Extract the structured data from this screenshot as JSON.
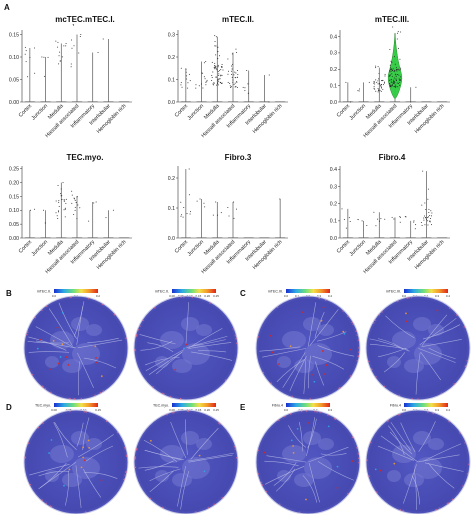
{
  "figure": {
    "panels": {
      "A": "A",
      "B": "B",
      "C": "C",
      "D": "D",
      "E": "E"
    }
  },
  "chart_data": [
    {
      "type": "scatter",
      "title": "mcTEC.mTEC.I.",
      "categories": [
        "Cortex",
        "Junction",
        "Medulla",
        "Hassall associated",
        "Inflammatory",
        "Interlobular",
        "Hemoglobin rich"
      ],
      "ylim": [
        0,
        0.16
      ],
      "yticks": [
        "0.00",
        "0.05",
        "0.10",
        "0.15"
      ],
      "ytick_values": [
        0,
        0.05,
        0.1,
        0.15
      ],
      "max_values": [
        0.12,
        0.1,
        0.13,
        0.15,
        0.11,
        0.14,
        0.0
      ],
      "cluster_centers": [
        0.09,
        0.09,
        0.1,
        0.1,
        0.0,
        0.0,
        0.0
      ],
      "point_counts": [
        8,
        4,
        12,
        10,
        1,
        1,
        0
      ]
    },
    {
      "type": "scatter",
      "title": "mTEC.II.",
      "categories": [
        "Cortex",
        "Junction",
        "Medulla",
        "Hassall associated",
        "Inflammatory",
        "Interlobular",
        "Hemoglobin rich"
      ],
      "ylim": [
        0,
        0.32
      ],
      "yticks": [
        "0.0",
        "0.1",
        "0.2",
        "0.3"
      ],
      "ytick_values": [
        0,
        0.1,
        0.2,
        0.3
      ],
      "max_values": [
        0.15,
        0.18,
        0.29,
        0.22,
        0.14,
        0.12,
        0.0
      ],
      "cluster_centers": [
        0.09,
        0.1,
        0.12,
        0.1,
        0.05,
        0.0,
        0.0
      ],
      "point_counts": [
        12,
        15,
        60,
        35,
        6,
        2,
        0
      ]
    },
    {
      "type": "scatter",
      "title": "mTEC.III.",
      "categories": [
        "Cortex",
        "Junction",
        "Medulla",
        "Hassall associated",
        "Inflammatory",
        "Interlobular",
        "Hemoglobin rich"
      ],
      "ylim": [
        0,
        0.44
      ],
      "yticks": [
        "0.0",
        "0.1",
        "0.2",
        "0.3",
        "0.4"
      ],
      "ytick_values": [
        0,
        0.1,
        0.2,
        0.3,
        0.4
      ],
      "max_values": [
        0.12,
        0.12,
        0.21,
        0.42,
        0.09,
        0.0,
        0.0
      ],
      "cluster_centers": [
        0.0,
        0.05,
        0.1,
        0.15,
        0.0,
        0.0,
        0.0
      ],
      "point_counts": [
        2,
        4,
        40,
        90,
        2,
        0,
        0
      ]
    },
    {
      "type": "scatter",
      "title": "TEC.myo.",
      "categories": [
        "Cortex",
        "Junction",
        "Medulla",
        "Hassall associated",
        "Inflammatory",
        "Interlobular",
        "Hemoglobin rich"
      ],
      "ylim": [
        0,
        0.26
      ],
      "yticks": [
        "0.00",
        "0.05",
        "0.10",
        "0.15",
        "0.20",
        "0.25"
      ],
      "ytick_values": [
        0,
        0.05,
        0.1,
        0.15,
        0.2,
        0.25
      ],
      "max_values": [
        0.1,
        0.1,
        0.2,
        0.15,
        0.13,
        0.1,
        0.0
      ],
      "cluster_centers": [
        0.08,
        0.09,
        0.11,
        0.11,
        0.1,
        0.06,
        0.0
      ],
      "point_counts": [
        2,
        2,
        25,
        15,
        3,
        2,
        0
      ]
    },
    {
      "type": "scatter",
      "title": "Fibro.3",
      "categories": [
        "Cortex",
        "Junction",
        "Medulla",
        "Hassall associated",
        "Inflammatory",
        "Interlobular",
        "Hemoglobin rich"
      ],
      "ylim": [
        0,
        0.24
      ],
      "yticks": [
        "0.0",
        "0.1",
        "0.2"
      ],
      "ytick_values": [
        0,
        0.1,
        0.2
      ],
      "max_values": [
        0.23,
        0.13,
        0.12,
        0.12,
        0.0,
        0.0,
        0.13
      ],
      "cluster_centers": [
        0.1,
        0.09,
        0.1,
        0.1,
        0.0,
        0.0,
        0.0
      ],
      "point_counts": [
        10,
        4,
        4,
        5,
        0,
        0,
        1
      ]
    },
    {
      "type": "scatter",
      "title": "Fibro.4",
      "categories": [
        "Cortex",
        "Junction",
        "Medulla",
        "Hassall associated",
        "Inflammatory",
        "Interlobular",
        "Hemoglobin rich"
      ],
      "ylim": [
        0,
        0.42
      ],
      "yticks": [
        "0.0",
        "0.1",
        "0.2",
        "0.3",
        "0.4"
      ],
      "ytick_values": [
        0,
        0.1,
        0.2,
        0.3,
        0.4
      ],
      "max_values": [
        0.17,
        0.1,
        0.15,
        0.12,
        0.1,
        0.39,
        0.0
      ],
      "cluster_centers": [
        0.09,
        0.08,
        0.1,
        0.1,
        0.09,
        0.12,
        0.0
      ],
      "point_counts": [
        5,
        4,
        6,
        5,
        6,
        30,
        0
      ]
    }
  ],
  "spatial": [
    {
      "panel": "B",
      "maps": [
        {
          "label": "mTEC.II.",
          "ticks": [
            "0.0",
            "0.1",
            "0.2"
          ],
          "hot": 0.25
        },
        {
          "label": "mTEC.II.",
          "ticks": [
            "0.00",
            "0.05",
            "0.10",
            "0.15",
            "0.20",
            "0.25"
          ],
          "hot": 0.05
        }
      ]
    },
    {
      "panel": "C",
      "maps": [
        {
          "label": "mTEC.III.",
          "ticks": [
            "0.0",
            "0.1",
            "0.2",
            "0.3",
            "0.4"
          ],
          "hot": 0.25
        },
        {
          "label": "mTEC.III.",
          "ticks": [
            "0.0",
            "0.1",
            "0.2",
            "0.3",
            "0.4"
          ],
          "hot": 0.05
        }
      ]
    },
    {
      "panel": "D",
      "maps": [
        {
          "label": "TEC.myo.",
          "ticks": [
            "0.00",
            "0.05",
            "0.10",
            "0.15"
          ],
          "hot": 0.18
        },
        {
          "label": "TEC.myo.",
          "ticks": [
            "0.00",
            "0.05",
            "0.10",
            "0.15",
            "0.20",
            "0.25"
          ],
          "hot": 0.05
        }
      ]
    },
    {
      "panel": "E",
      "maps": [
        {
          "label": "Fibro.4",
          "ticks": [
            "0.0",
            "0.1",
            "0.2",
            "0.3"
          ],
          "hot": 0.18
        },
        {
          "label": "Fibro.4",
          "ticks": [
            "0.0",
            "0.1",
            "0.2",
            "0.3",
            "0.4"
          ],
          "hot": 0.05
        }
      ]
    }
  ],
  "colors": {
    "dot": "#222222",
    "violin_fill": "#2ecc40",
    "violin_stroke": "#1a7f1a",
    "tissue_base": "#4b4fb8",
    "tissue_dark": "#3a3e9c",
    "tissue_edge": "#9fa3e0",
    "colorbar": [
      "#1a2fd0",
      "#2aa7e8",
      "#6fe07a",
      "#f4e04a",
      "#f49a2a",
      "#e0241a"
    ]
  }
}
